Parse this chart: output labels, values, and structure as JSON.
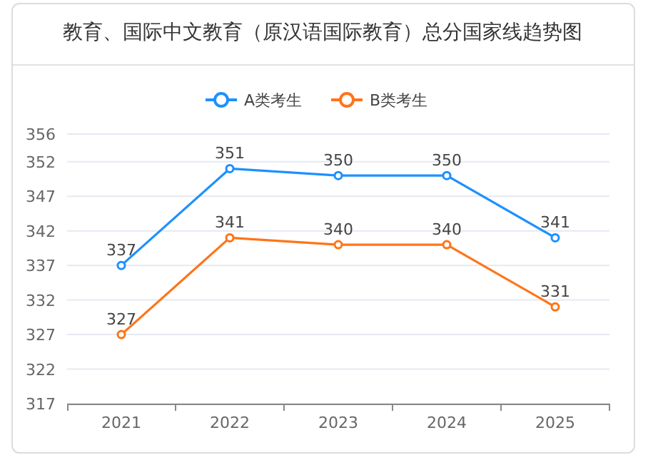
{
  "chart_data": {
    "type": "line",
    "title": "教育、国际中文教育（原汉语国际教育）总分国家线趋势图",
    "categories": [
      "2021",
      "2022",
      "2023",
      "2024",
      "2025"
    ],
    "series": [
      {
        "name": "A类考生",
        "color": "#1e90ff",
        "values": [
          337,
          351,
          350,
          350,
          341
        ]
      },
      {
        "name": "B类考生",
        "color": "#ff7418",
        "values": [
          327,
          341,
          340,
          340,
          331
        ]
      }
    ],
    "ylim": [
      317,
      356
    ],
    "yticks": [
      317,
      322,
      327,
      332,
      337,
      342,
      347,
      352,
      356
    ],
    "grid": "y",
    "legend": "top",
    "marker": "circle",
    "line_style": "solid",
    "data_labels": true
  }
}
